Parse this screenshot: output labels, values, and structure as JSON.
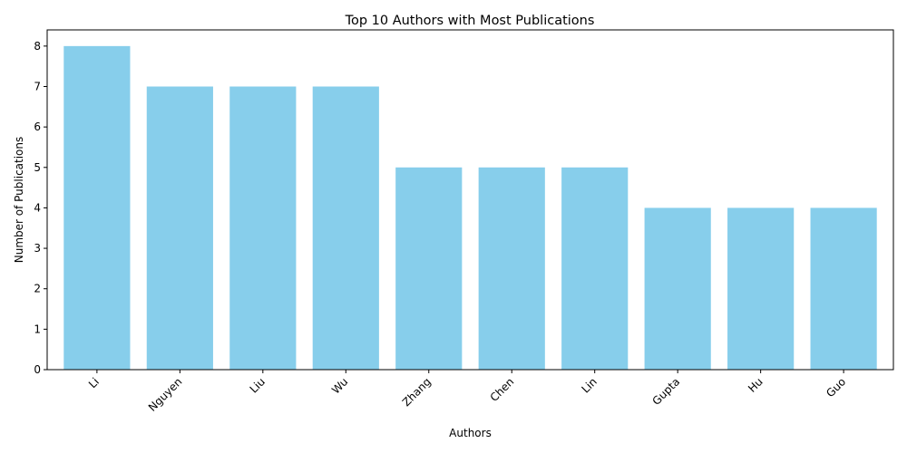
{
  "chart_data": {
    "type": "bar",
    "title": "Top 10 Authors with Most Publications",
    "xlabel": "Authors",
    "ylabel": "Number of Publications",
    "categories": [
      "Li",
      "Nguyen",
      "Liu",
      "Wu",
      "Zhang",
      "Chen",
      "Lin",
      "Gupta",
      "Hu",
      "Guo"
    ],
    "values": [
      8,
      7,
      7,
      7,
      5,
      5,
      5,
      4,
      4,
      4
    ],
    "ylim": [
      0,
      8.4
    ],
    "yticks": [
      0,
      1,
      2,
      3,
      4,
      5,
      6,
      7,
      8
    ],
    "grid": false,
    "legend": "none",
    "bar_color": "#87ceeb"
  }
}
